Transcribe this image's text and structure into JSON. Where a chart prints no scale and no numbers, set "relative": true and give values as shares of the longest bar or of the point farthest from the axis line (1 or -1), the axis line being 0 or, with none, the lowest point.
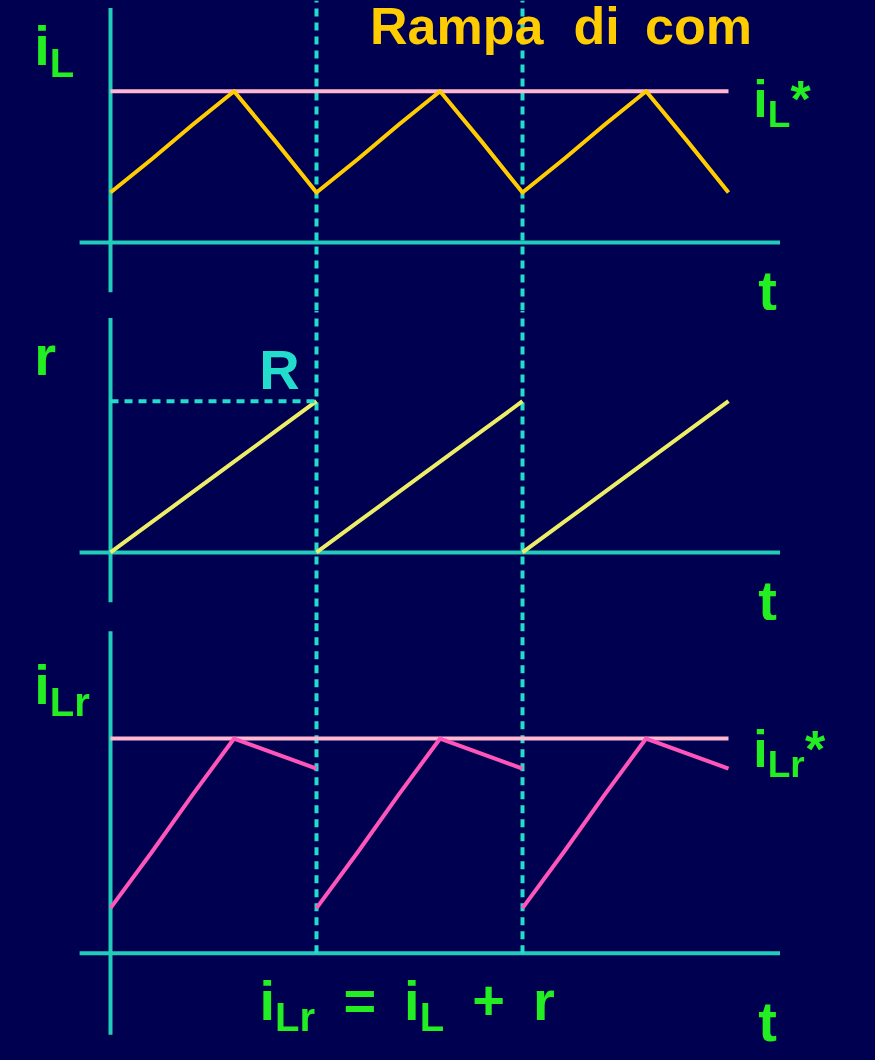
{
  "chart_data": [
    {
      "type": "line",
      "title": "Rampa di com",
      "ylabel": "i$_{L}$",
      "xlabel": "t",
      "relative": true,
      "grid": false,
      "categories": [
        null,
        null,
        null,
        null,
        null,
        null,
        null,
        null,
        null,
        null,
        null,
        null,
        null,
        null,
        null,
        null
      ],
      "series": [
        {
          "color": "#ffcc00",
          "values": [
            0.33,
            0.55,
            0.78,
            1,
            0.67,
            0.33,
            0.55,
            0.78,
            1,
            0.67,
            0.33,
            0.55,
            0.78,
            1,
            0.67,
            0.33
          ]
        }
      ],
      "ref_lines": [
        {
          "axis": "y",
          "value": 1,
          "label": "i$_{L}$*",
          "color": "#ffb6d0"
        }
      ]
    },
    {
      "type": "line",
      "ylabel": "r",
      "xlabel": "t",
      "relative": true,
      "grid": false,
      "categories": [
        null,
        null,
        null,
        null,
        null,
        null,
        null,
        null,
        null,
        null,
        null,
        null,
        null,
        null,
        null,
        null
      ],
      "series": [
        {
          "color": "#eeee66",
          "values": [
            0,
            0.2,
            0.4,
            0.6,
            0.8,
            1,
            null,
            null,
            null,
            null,
            null,
            null,
            null,
            null,
            null,
            null
          ]
        },
        {
          "color": "#eeee66",
          "values": [
            null,
            null,
            null,
            null,
            null,
            0,
            0.2,
            0.4,
            0.6,
            0.8,
            1,
            null,
            null,
            null,
            null,
            null
          ]
        },
        {
          "color": "#eeee66",
          "values": [
            null,
            null,
            null,
            null,
            null,
            null,
            null,
            null,
            null,
            null,
            0,
            0.2,
            0.4,
            0.6,
            0.8,
            1
          ]
        },
        {
          "color": "#22ddcc",
          "values": [
            1,
            1,
            1,
            1,
            1,
            1,
            null,
            null,
            null,
            null,
            null,
            null,
            null,
            null,
            null,
            null
          ],
          "line_style": "dashed"
        }
      ],
      "annotations": [
        {
          "text": "R",
          "y": 1
        }
      ]
    },
    {
      "type": "line",
      "ylabel": "i$_{Lr}$",
      "xlabel": "t",
      "relative": true,
      "grid": false,
      "categories": [
        null,
        null,
        null,
        null,
        null,
        null,
        null,
        null,
        null,
        null,
        null,
        null,
        null,
        null,
        null,
        null
      ],
      "series": [
        {
          "color": "#ff55bb",
          "values": [
            0.21,
            0.47,
            0.74,
            1,
            0.93,
            0.86,
            null,
            null,
            null,
            null,
            null,
            null,
            null,
            null,
            null,
            null
          ]
        },
        {
          "color": "#ff55bb",
          "values": [
            null,
            null,
            null,
            null,
            null,
            0.21,
            0.47,
            0.74,
            1,
            0.93,
            0.86,
            null,
            null,
            null,
            null,
            null
          ]
        },
        {
          "color": "#ff55bb",
          "values": [
            null,
            null,
            null,
            null,
            null,
            null,
            null,
            null,
            null,
            null,
            0.21,
            0.47,
            0.74,
            1,
            0.93,
            0.86
          ]
        }
      ],
      "annotations": [
        "i$_{Lr}$ = i$_{L}$ + r"
      ],
      "ref_lines": [
        {
          "axis": "y",
          "value": 1,
          "label": "i$_{Lr}$*",
          "color": "#ffb6d0"
        }
      ]
    }
  ]
}
